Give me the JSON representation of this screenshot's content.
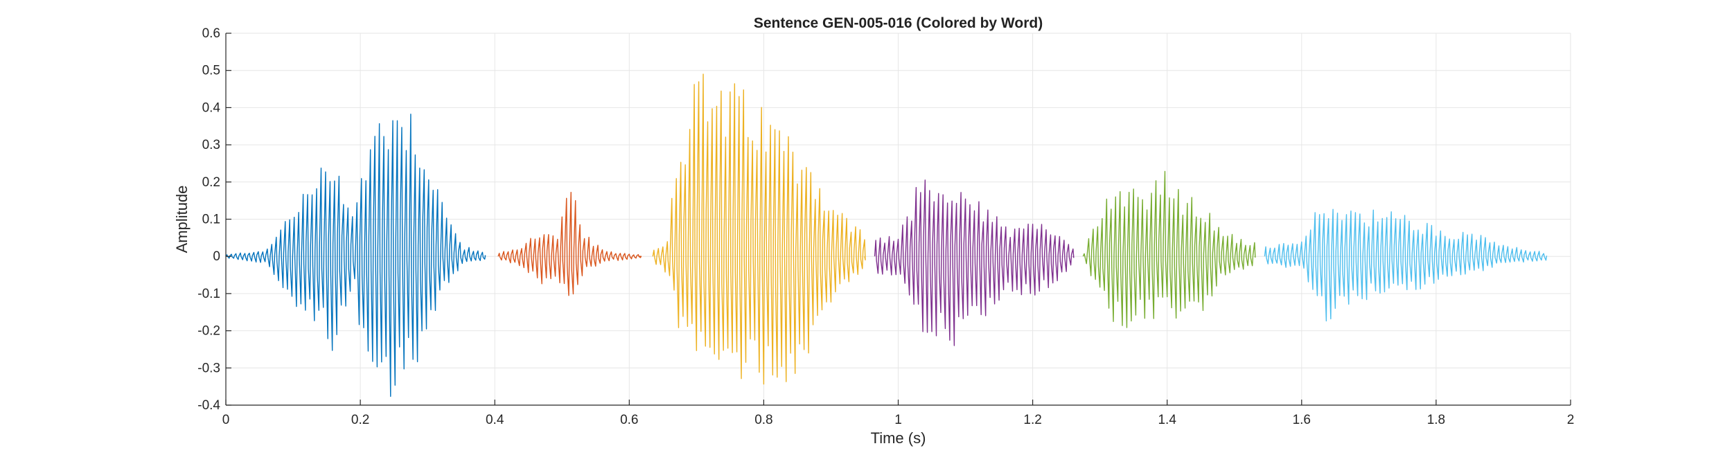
{
  "chart_data": {
    "type": "line",
    "title": "Sentence GEN-005-016 (Colored by Word)",
    "xlabel": "Time (s)",
    "ylabel": "Amplitude",
    "xlim": [
      0,
      2
    ],
    "ylim": [
      -0.4,
      0.6
    ],
    "xticks": [
      0,
      0.2,
      0.4,
      0.6,
      0.8,
      1,
      1.2,
      1.4,
      1.6,
      1.8,
      2
    ],
    "xtick_labels": [
      "0",
      "0.2",
      "0.4",
      "0.6",
      "0.8",
      "1",
      "1.2",
      "1.4",
      "1.6",
      "1.8",
      "2"
    ],
    "yticks": [
      -0.4,
      -0.3,
      -0.2,
      -0.1,
      0,
      0.1,
      0.2,
      0.3,
      0.4,
      0.5,
      0.6
    ],
    "ytick_labels": [
      "-0.4",
      "-0.3",
      "-0.2",
      "-0.1",
      "0",
      "0.1",
      "0.2",
      "0.3",
      "0.4",
      "0.5",
      "0.6"
    ],
    "grid": true,
    "legend": "none",
    "series": [
      {
        "color": "#0072BD",
        "t_start": 0.0,
        "t_end": 0.385,
        "freq_hz": 150,
        "envelope": {
          "t": [
            0.0,
            0.06,
            0.1,
            0.13,
            0.16,
            0.19,
            0.2,
            0.23,
            0.26,
            0.29,
            0.32,
            0.35,
            0.385
          ],
          "max": [
            0.005,
            0.02,
            0.15,
            0.22,
            0.3,
            0.12,
            0.25,
            0.43,
            0.47,
            0.36,
            0.16,
            0.03,
            0.01
          ],
          "min": [
            -0.005,
            -0.02,
            -0.15,
            -0.2,
            -0.26,
            -0.1,
            -0.25,
            -0.39,
            -0.37,
            -0.27,
            -0.11,
            -0.02,
            -0.01
          ]
        }
      },
      {
        "color": "#D95319",
        "t_start": 0.405,
        "t_end": 0.615,
        "freq_hz": 150,
        "envelope": {
          "t": [
            0.405,
            0.44,
            0.47,
            0.49,
            0.51,
            0.53,
            0.56,
            0.615
          ],
          "max": [
            0.01,
            0.03,
            0.09,
            0.05,
            0.21,
            0.07,
            0.015,
            0.005
          ],
          "min": [
            -0.01,
            -0.03,
            -0.09,
            -0.06,
            -0.16,
            -0.05,
            -0.015,
            -0.005
          ]
        }
      },
      {
        "color": "#EDB120",
        "t_start": 0.635,
        "t_end": 0.95,
        "freq_hz": 150,
        "envelope": {
          "t": [
            0.635,
            0.655,
            0.67,
            0.7,
            0.74,
            0.78,
            0.82,
            0.86,
            0.9,
            0.95
          ],
          "max": [
            0.02,
            0.05,
            0.34,
            0.51,
            0.49,
            0.44,
            0.38,
            0.3,
            0.15,
            0.06
          ],
          "min": [
            -0.02,
            -0.05,
            -0.2,
            -0.32,
            -0.34,
            -0.34,
            -0.36,
            -0.3,
            -0.12,
            -0.04
          ]
        }
      },
      {
        "color": "#7E2F8E",
        "t_start": 0.965,
        "t_end": 1.26,
        "freq_hz": 150,
        "envelope": {
          "t": [
            0.965,
            1.0,
            1.03,
            1.06,
            1.09,
            1.13,
            1.16,
            1.2,
            1.23,
            1.26
          ],
          "max": [
            0.05,
            0.06,
            0.22,
            0.19,
            0.18,
            0.14,
            0.08,
            0.09,
            0.09,
            0.02
          ],
          "min": [
            -0.05,
            -0.06,
            -0.2,
            -0.22,
            -0.25,
            -0.16,
            -0.1,
            -0.11,
            -0.1,
            -0.02
          ]
        }
      },
      {
        "color": "#77AC30",
        "t_start": 1.275,
        "t_end": 1.53,
        "freq_hz": 150,
        "envelope": {
          "t": [
            1.275,
            1.3,
            1.33,
            1.36,
            1.39,
            1.42,
            1.45,
            1.48,
            1.53
          ],
          "max": [
            0.01,
            0.16,
            0.22,
            0.19,
            0.25,
            0.17,
            0.15,
            0.07,
            0.04
          ],
          "min": [
            -0.01,
            -0.14,
            -0.21,
            -0.19,
            -0.17,
            -0.18,
            -0.16,
            -0.06,
            -0.03
          ]
        }
      },
      {
        "color": "#4DBEEE",
        "t_start": 1.545,
        "t_end": 1.965,
        "freq_hz": 150,
        "envelope": {
          "t": [
            1.545,
            1.6,
            1.63,
            1.66,
            1.7,
            1.75,
            1.8,
            1.85,
            1.9,
            1.965
          ],
          "max": [
            0.03,
            0.04,
            0.17,
            0.14,
            0.13,
            0.12,
            0.08,
            0.07,
            0.03,
            0.01
          ],
          "min": [
            -0.03,
            -0.03,
            -0.18,
            -0.16,
            -0.12,
            -0.1,
            -0.08,
            -0.05,
            -0.02,
            -0.01
          ]
        }
      }
    ]
  }
}
